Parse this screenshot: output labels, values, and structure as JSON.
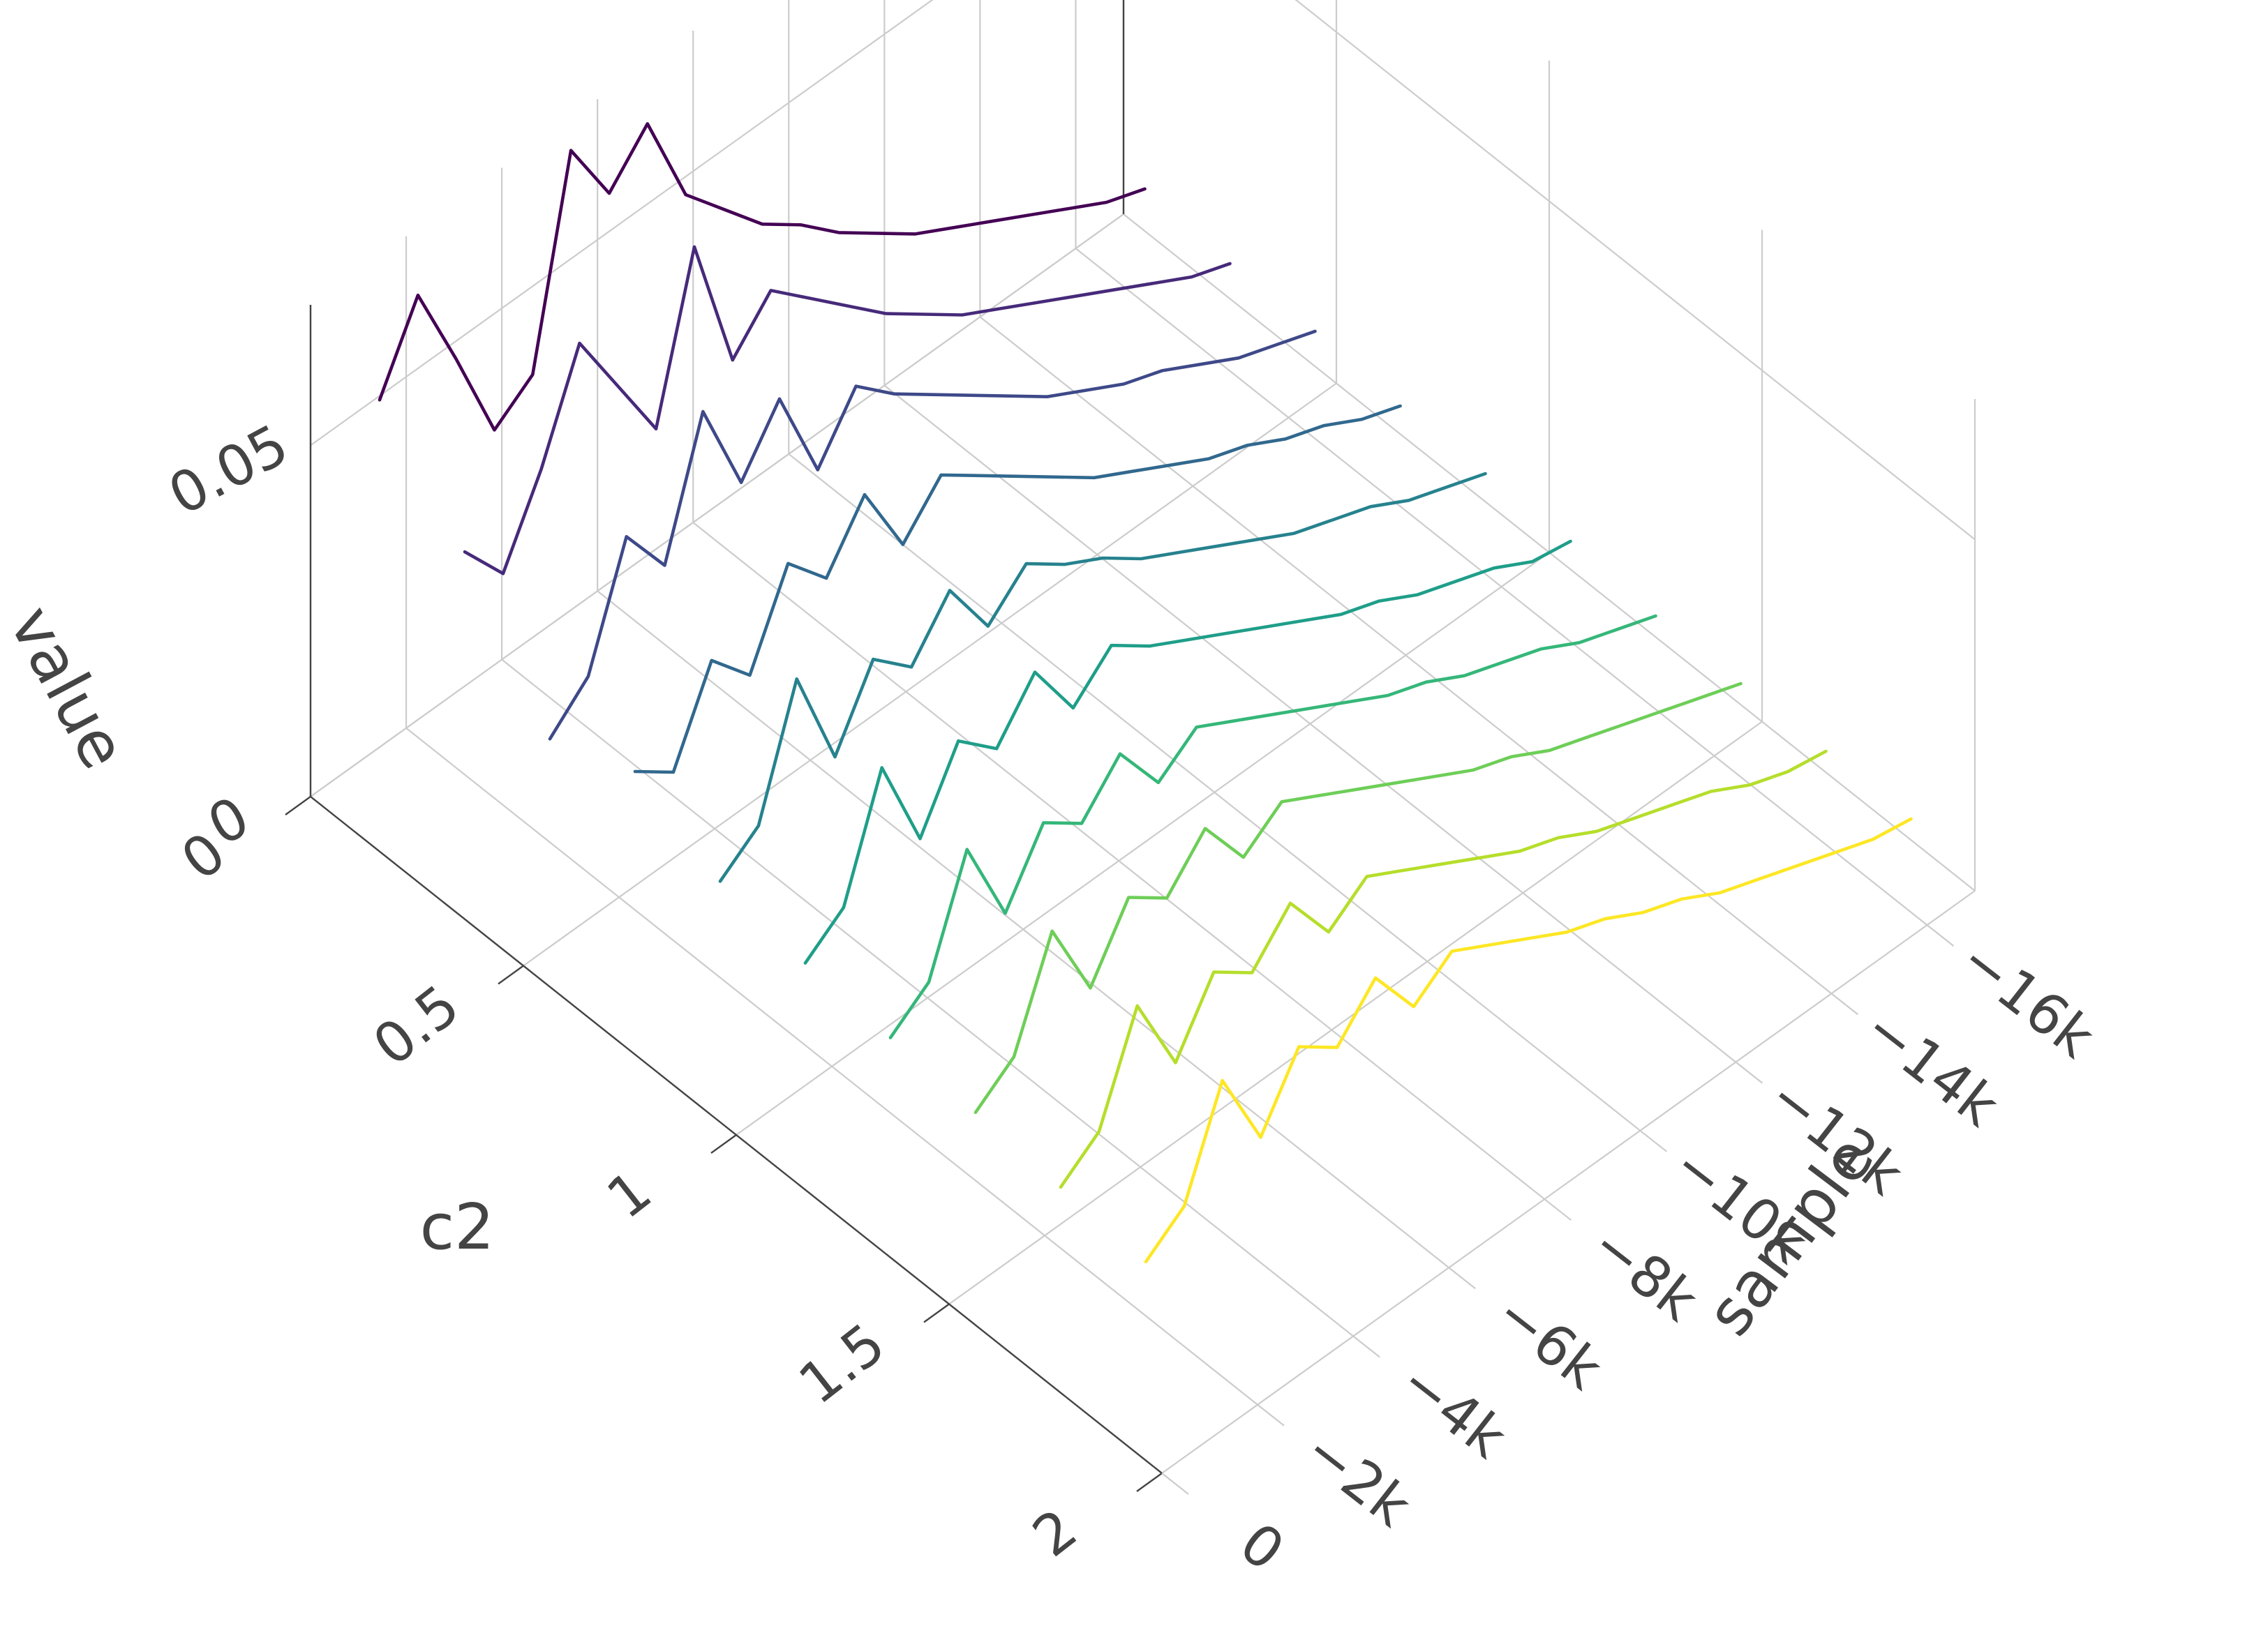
{
  "chart_data": {
    "type": "line",
    "title": "",
    "axes": {
      "x": {
        "label": "c2",
        "range": [
          0,
          2
        ],
        "ticks": [
          "0",
          "0.5",
          "1",
          "1.5",
          "2"
        ]
      },
      "y": {
        "label": "sample",
        "range": [
          -17000,
          0
        ],
        "ticks": [
          "0",
          "−2k",
          "−4k",
          "−6k",
          "−8k",
          "−10k",
          "−12k",
          "−14k",
          "−16k"
        ]
      },
      "z": {
        "label": "value",
        "range": [
          0,
          0.07
        ],
        "ticks": [
          "0",
          "0.05"
        ]
      }
    },
    "grid": true,
    "legend": "none",
    "colorscale": "viridis",
    "y_values": [
      -17000,
      -16200,
      -15400,
      -14600,
      -13800,
      -13000,
      -12200,
      -11400,
      -10600,
      -9800,
      -9000,
      -8200,
      -7400,
      -6600,
      -5800,
      -5000,
      -4200,
      -3400,
      -2600,
      -1800,
      -1000
    ],
    "series": [
      {
        "c2": 0.05,
        "color": "#440154",
        "values": [
          0.006,
          0.008,
          0.011,
          0.014,
          0.017,
          0.02,
          0.023,
          0.027,
          0.031,
          0.036,
          0.04,
          0.046,
          0.052,
          0.066,
          0.06,
          0.07,
          0.042,
          0.038,
          0.052,
          0.065,
          0.054
        ]
      },
      {
        "c2": 0.25,
        "color": "#472a7a",
        "values": [
          0.005,
          0.007,
          0.01,
          0.013,
          0.016,
          0.019,
          0.022,
          0.025,
          0.029,
          0.033,
          0.038,
          0.043,
          0.048,
          0.042,
          0.062,
          0.04,
          0.05,
          0.06,
          0.046,
          0.035,
          0.042
        ]
      },
      {
        "c2": 0.45,
        "color": "#3e4989",
        "values": [
          0.005,
          0.007,
          0.009,
          0.012,
          0.015,
          0.017,
          0.02,
          0.023,
          0.027,
          0.031,
          0.035,
          0.039,
          0.044,
          0.036,
          0.05,
          0.042,
          0.056,
          0.038,
          0.046,
          0.03,
          0.025
        ]
      },
      {
        "c2": 0.65,
        "color": "#31688e",
        "values": [
          0.004,
          0.006,
          0.009,
          0.011,
          0.014,
          0.016,
          0.019,
          0.022,
          0.025,
          0.029,
          0.033,
          0.037,
          0.041,
          0.035,
          0.046,
          0.038,
          0.044,
          0.032,
          0.038,
          0.026,
          0.03
        ]
      },
      {
        "c2": 0.85,
        "color": "#26828e",
        "values": [
          0.004,
          0.006,
          0.008,
          0.011,
          0.013,
          0.015,
          0.018,
          0.021,
          0.024,
          0.027,
          0.031,
          0.034,
          0.038,
          0.033,
          0.042,
          0.035,
          0.04,
          0.03,
          0.045,
          0.028,
          0.024
        ]
      },
      {
        "c2": 1.05,
        "color": "#1f9e89",
        "values": [
          0.004,
          0.005,
          0.008,
          0.01,
          0.012,
          0.015,
          0.017,
          0.02,
          0.023,
          0.026,
          0.029,
          0.032,
          0.036,
          0.031,
          0.04,
          0.033,
          0.038,
          0.028,
          0.042,
          0.026,
          0.022
        ]
      },
      {
        "c2": 1.25,
        "color": "#35b779",
        "values": [
          0.003,
          0.005,
          0.007,
          0.01,
          0.012,
          0.014,
          0.017,
          0.019,
          0.022,
          0.025,
          0.028,
          0.031,
          0.034,
          0.03,
          0.038,
          0.032,
          0.036,
          0.027,
          0.04,
          0.025,
          0.021
        ]
      },
      {
        "c2": 1.45,
        "color": "#6ece58",
        "values": [
          0.003,
          0.005,
          0.007,
          0.009,
          0.011,
          0.013,
          0.016,
          0.018,
          0.021,
          0.024,
          0.027,
          0.03,
          0.033,
          0.029,
          0.037,
          0.031,
          0.035,
          0.026,
          0.038,
          0.024,
          0.02
        ]
      },
      {
        "c2": 1.65,
        "color": "#b5de2b",
        "values": [
          0.003,
          0.004,
          0.006,
          0.009,
          0.011,
          0.013,
          0.015,
          0.018,
          0.02,
          0.023,
          0.026,
          0.029,
          0.032,
          0.028,
          0.036,
          0.03,
          0.034,
          0.025,
          0.037,
          0.023,
          0.019
        ]
      },
      {
        "c2": 1.85,
        "color": "#fde725",
        "values": [
          0.003,
          0.004,
          0.006,
          0.008,
          0.01,
          0.012,
          0.015,
          0.017,
          0.02,
          0.022,
          0.025,
          0.028,
          0.031,
          0.027,
          0.035,
          0.029,
          0.033,
          0.024,
          0.036,
          0.022,
          0.018
        ]
      }
    ]
  }
}
